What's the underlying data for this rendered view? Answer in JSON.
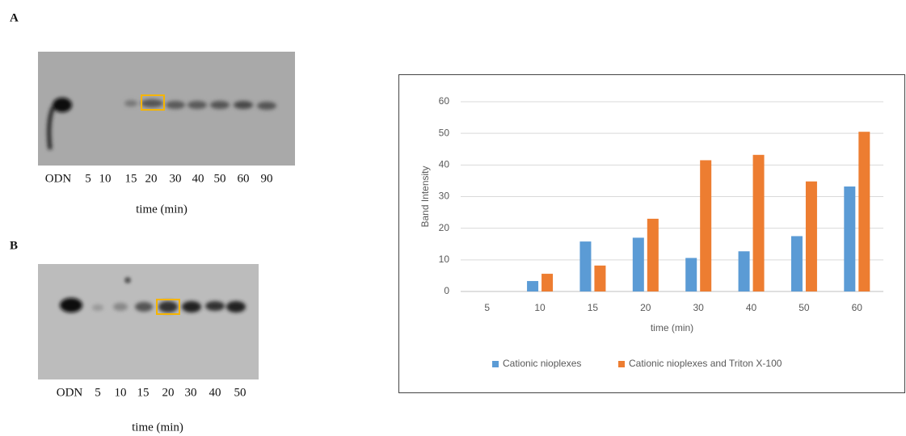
{
  "panels": [
    {
      "label": "A",
      "lanes": [
        "ODN",
        "5",
        "10",
        "15",
        "20",
        "30",
        "40",
        "50",
        "60",
        "90"
      ],
      "xlabel": "time (min)"
    },
    {
      "label": "B",
      "lanes": [
        "ODN",
        "5",
        "10",
        "15",
        "20",
        "30",
        "40",
        "50"
      ],
      "xlabel": "time (min)"
    }
  ],
  "chart_data": {
    "type": "bar",
    "ylabel": "Band Intensity",
    "xlabel": "time (min)",
    "categories": [
      "5",
      "10",
      "15",
      "20",
      "30",
      "40",
      "50",
      "60"
    ],
    "series": [
      {
        "name": "Cationic nioplexes",
        "color": "#5b9bd5",
        "values": [
          0,
          3.3,
          15.8,
          17,
          10.6,
          12.7,
          17.5,
          33.2
        ]
      },
      {
        "name": "Cationic nioplexes and Triton X-100",
        "color": "#ed7d31",
        "values": [
          0,
          5.6,
          8.2,
          23,
          41.5,
          43.2,
          34.8,
          50.5
        ]
      }
    ],
    "ylim": [
      0,
      60
    ],
    "yticks": [
      0,
      10,
      20,
      30,
      40,
      50,
      60
    ],
    "grid": true,
    "legend": "bottom"
  }
}
